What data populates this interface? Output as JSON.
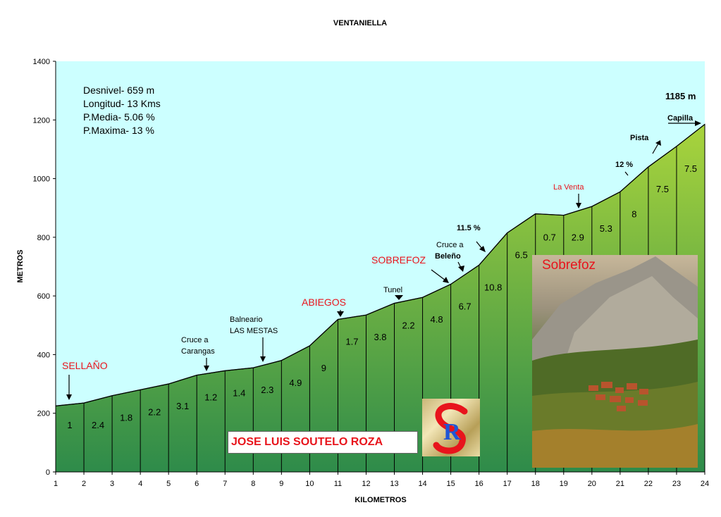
{
  "chart_data": {
    "type": "area",
    "title": "VENTANIELLA",
    "xlabel": "KILOMETROS",
    "ylabel": "METROS",
    "xlim": [
      1,
      24
    ],
    "ylim": [
      0,
      1400
    ],
    "x_ticks": [
      "1",
      "2",
      "3",
      "4",
      "5",
      "6",
      "7",
      "8",
      "9",
      "10",
      "11",
      "12",
      "13",
      "14",
      "15",
      "16",
      "17",
      "18",
      "19",
      "20",
      "21",
      "22",
      "23",
      "24"
    ],
    "y_ticks": [
      "0",
      "200",
      "400",
      "600",
      "800",
      "1000",
      "1200",
      "1400"
    ],
    "x": [
      1,
      2,
      3,
      4,
      5,
      6,
      7,
      8,
      9,
      10,
      11,
      12,
      13,
      14,
      15,
      16,
      17,
      18,
      19,
      20,
      21,
      22,
      23,
      24
    ],
    "y": [
      225,
      235,
      260,
      280,
      300,
      330,
      345,
      355,
      380,
      430,
      520,
      535,
      575,
      595,
      640,
      705,
      815,
      880,
      875,
      905,
      955,
      1040,
      1110,
      1185
    ],
    "segment_slopes": [
      "1",
      "2.4",
      "1.8",
      "2.2",
      "3.1",
      "1.2",
      "1.4",
      "2.3",
      "4.9",
      "9",
      "1.7",
      "3.8",
      "2.2",
      "4.8",
      "6.7",
      "10.8",
      "6.5",
      "0.7",
      "2.9",
      "5.3",
      "8",
      "7.5",
      "7.5"
    ],
    "segment_colors": [
      "#000000",
      "#000000",
      "#000000",
      "#000000",
      "#000000",
      "#000000",
      "#000000",
      "#000000",
      "#000000",
      "#000000",
      "#000000",
      "#000000",
      "#000000",
      "#000000",
      "#000000",
      "#000000",
      "#000000",
      "#1a3a9c",
      "#000000",
      "#000000",
      "#000000",
      "#e8141c",
      "#e8141c"
    ],
    "grid": false,
    "plot_background": "#ccffff",
    "fill_top_color": "#a9d43c",
    "fill_bottom_color": "#2e8b4a"
  },
  "info": {
    "desnivel": "Desnivel- 659 m",
    "longitud": "Longitud- 13 Kms",
    "media": "P.Media- 5.06 %",
    "maxima": "P.Maxima- 13 %"
  },
  "annotations": {
    "sellano": "SELLAÑO",
    "cruce_carangas_1": "Cruce a",
    "cruce_carangas_2": "Carangas",
    "balneario_1": "Balneario",
    "balneario_2": "LAS MESTAS",
    "abiegos": "ABIEGOS",
    "tunel": "Tunel",
    "sobrefoz": "SOBREFOZ",
    "cruce_beleno_1": "Cruce a",
    "cruce_beleno_2": "Beleño",
    "pct_115": "11.5 %",
    "la_venta": "La Venta",
    "pct_12": "12 %",
    "pista": "Pista",
    "capilla": "Capilla",
    "summit": "1185 m"
  },
  "author": "JOSE LUIS SOUTELO ROZA",
  "logo_text": "R",
  "photo_title": "Sobrefoz"
}
